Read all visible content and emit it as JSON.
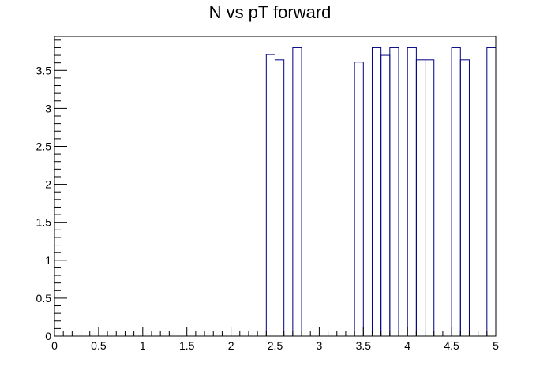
{
  "chart_data": {
    "type": "histogram",
    "title": "N vs pT forward",
    "xlabel": "",
    "ylabel": "",
    "xlim": [
      0,
      5
    ],
    "ylim": [
      0,
      3.95
    ],
    "bin_width": 0.1,
    "bins": [
      {
        "x0": 2.4,
        "x1": 2.5,
        "value": 3.71
      },
      {
        "x0": 2.5,
        "x1": 2.6,
        "value": 3.64
      },
      {
        "x0": 2.7,
        "x1": 2.8,
        "value": 3.8
      },
      {
        "x0": 3.4,
        "x1": 3.5,
        "value": 3.61
      },
      {
        "x0": 3.6,
        "x1": 3.7,
        "value": 3.8
      },
      {
        "x0": 3.7,
        "x1": 3.8,
        "value": 3.7
      },
      {
        "x0": 3.8,
        "x1": 3.9,
        "value": 3.8
      },
      {
        "x0": 4.0,
        "x1": 4.1,
        "value": 3.8
      },
      {
        "x0": 4.1,
        "x1": 4.2,
        "value": 3.64
      },
      {
        "x0": 4.2,
        "x1": 4.3,
        "value": 3.64
      },
      {
        "x0": 4.5,
        "x1": 4.6,
        "value": 3.8
      },
      {
        "x0": 4.6,
        "x1": 4.7,
        "value": 3.64
      },
      {
        "x0": 4.9,
        "x1": 5.0,
        "value": 3.8
      }
    ],
    "x_ticks": [
      "0",
      "0.5",
      "1",
      "1.5",
      "2",
      "2.5",
      "3",
      "3.5",
      "4",
      "4.5",
      "5"
    ],
    "y_ticks": [
      "0",
      "0.5",
      "1",
      "1.5",
      "2",
      "2.5",
      "3",
      "3.5"
    ],
    "line_color": "#000080",
    "frame_color": "#000000",
    "grid": false,
    "legend": "none"
  }
}
